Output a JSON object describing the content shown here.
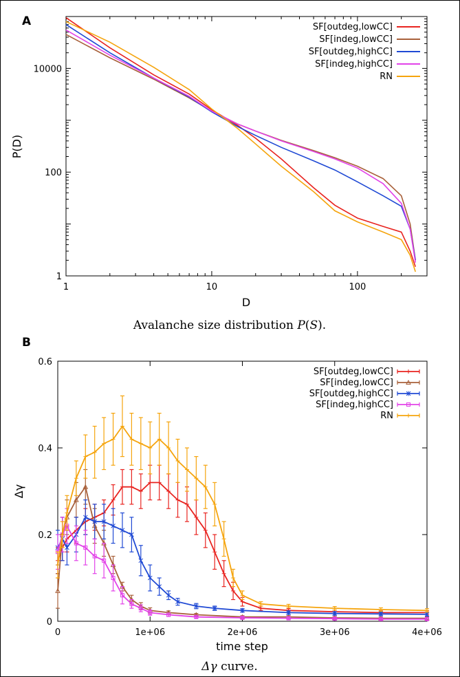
{
  "colors": {
    "SF_outdeg_lowCC": "#e8231f",
    "SF_indeg_lowCC": "#a8603a",
    "SF_outdeg_highCC": "#1f49d4",
    "SF_indeg_highCC": "#e242e8",
    "RN": "#f5a40c"
  },
  "chart_data": [
    {
      "panel_label": "A",
      "type": "line",
      "xscale": "log",
      "yscale": "log",
      "xlim": [
        1,
        300
      ],
      "ylim": [
        1,
        100000
      ],
      "xticks": [
        1,
        10,
        100
      ],
      "xtick_labels": [
        "1",
        "10",
        "100"
      ],
      "yticks": [
        1,
        100,
        10000
      ],
      "ytick_labels": [
        "1",
        "100",
        "10000"
      ],
      "xlabel": "D",
      "ylabel": "P(D)",
      "caption_prefix": "Avalanche size distribution ",
      "caption_var": "P",
      "caption_arg": "S",
      "caption_suffix": ".",
      "legend_position": "top-right",
      "series": [
        {
          "name": "SF[outdeg,lowCC]",
          "color_key": "SF_outdeg_lowCC",
          "x": [
            1,
            2,
            4,
            7,
            10,
            15,
            20,
            30,
            50,
            70,
            100,
            150,
            200,
            230,
            250
          ],
          "y": [
            95000,
            25000,
            7500,
            3200,
            1600,
            800,
            450,
            180,
            50,
            23,
            13,
            9,
            7,
            3,
            1.5
          ]
        },
        {
          "name": "SF[indeg,lowCC]",
          "color_key": "SF_indeg_lowCC",
          "x": [
            1,
            2,
            4,
            7,
            10,
            15,
            20,
            30,
            50,
            70,
            100,
            150,
            200,
            230,
            250
          ],
          "y": [
            45000,
            16000,
            6200,
            2700,
            1500,
            850,
            620,
            410,
            260,
            190,
            130,
            75,
            35,
            10,
            2
          ]
        },
        {
          "name": "SF[outdeg,highCC]",
          "color_key": "SF_outdeg_highCC",
          "x": [
            1,
            2,
            4,
            7,
            10,
            15,
            20,
            30,
            50,
            70,
            100,
            150,
            200,
            230,
            250
          ],
          "y": [
            70000,
            20000,
            6500,
            2800,
            1450,
            760,
            510,
            300,
            165,
            110,
            65,
            35,
            22,
            8,
            2
          ]
        },
        {
          "name": "SF[indeg,highCC]",
          "color_key": "SF_indeg_highCC",
          "x": [
            1,
            2,
            4,
            7,
            10,
            15,
            20,
            30,
            50,
            70,
            100,
            150,
            200,
            230,
            250
          ],
          "y": [
            55000,
            18000,
            6500,
            2900,
            1500,
            850,
            620,
            400,
            250,
            180,
            120,
            60,
            25,
            8,
            1.8
          ]
        },
        {
          "name": "RN",
          "color_key": "RN",
          "x": [
            1,
            2,
            4,
            7,
            10,
            15,
            20,
            30,
            50,
            70,
            100,
            150,
            200,
            230,
            250
          ],
          "y": [
            80000,
            32000,
            10500,
            3900,
            1650,
            700,
            350,
            130,
            42,
            18,
            11,
            7,
            5,
            2.5,
            1.2
          ]
        }
      ]
    },
    {
      "panel_label": "B",
      "type": "line",
      "xlim": [
        0,
        4000000
      ],
      "ylim": [
        0,
        0.6
      ],
      "xticks": [
        0,
        1000000,
        2000000,
        3000000,
        4000000
      ],
      "xtick_labels": [
        "0",
        "1e+06",
        "2e+06",
        "3e+06",
        "4e+06"
      ],
      "yticks": [
        0,
        0.2,
        0.4,
        0.6
      ],
      "ytick_labels": [
        "0",
        "0.2",
        "0.4",
        "0.6"
      ],
      "xlabel": "time step",
      "ylabel": "Δγ",
      "caption_var": "Δγ",
      "caption_suffix": " curve.",
      "legend_position": "top-right",
      "series": [
        {
          "name": "SF[outdeg,lowCC]",
          "color_key": "SF_outdeg_lowCC",
          "marker": "plus",
          "x": [
            0,
            50000,
            100000,
            200000,
            300000,
            400000,
            500000,
            600000,
            700000,
            800000,
            900000,
            1000000,
            1100000,
            1200000,
            1300000,
            1400000,
            1500000,
            1600000,
            1700000,
            1800000,
            1900000,
            2000000,
            2200000,
            2500000,
            3000000,
            3500000,
            4000000
          ],
          "y": [
            0.14,
            0.17,
            0.19,
            0.21,
            0.23,
            0.24,
            0.25,
            0.28,
            0.31,
            0.31,
            0.3,
            0.32,
            0.32,
            0.3,
            0.28,
            0.27,
            0.24,
            0.21,
            0.16,
            0.11,
            0.07,
            0.045,
            0.03,
            0.025,
            0.022,
            0.02,
            0.02
          ],
          "err": [
            0.03,
            0.03,
            0.03,
            0.03,
            0.03,
            0.03,
            0.03,
            0.035,
            0.04,
            0.04,
            0.04,
            0.04,
            0.04,
            0.04,
            0.04,
            0.04,
            0.04,
            0.04,
            0.04,
            0.03,
            0.02,
            0.01,
            0.005,
            0.004,
            0.004,
            0.004,
            0.004
          ]
        },
        {
          "name": "SF[indeg,lowCC]",
          "color_key": "SF_indeg_lowCC",
          "marker": "triangle",
          "x": [
            0,
            50000,
            100000,
            200000,
            300000,
            400000,
            500000,
            600000,
            700000,
            800000,
            900000,
            1000000,
            1200000,
            1500000,
            2000000,
            2500000,
            3000000,
            3500000,
            4000000
          ],
          "y": [
            0.07,
            0.2,
            0.24,
            0.28,
            0.31,
            0.22,
            0.18,
            0.13,
            0.08,
            0.05,
            0.035,
            0.025,
            0.02,
            0.015,
            0.01,
            0.01,
            0.008,
            0.007,
            0.007
          ],
          "err": [
            0.04,
            0.04,
            0.04,
            0.04,
            0.04,
            0.04,
            0.03,
            0.02,
            0.01,
            0.01,
            0.008,
            0.006,
            0.004,
            0.003,
            0.003,
            0.003,
            0.003,
            0.003,
            0.003
          ]
        },
        {
          "name": "SF[outdeg,highCC]",
          "color_key": "SF_outdeg_highCC",
          "marker": "star",
          "x": [
            0,
            50000,
            100000,
            200000,
            300000,
            400000,
            500000,
            600000,
            700000,
            800000,
            900000,
            1000000,
            1100000,
            1200000,
            1300000,
            1500000,
            1700000,
            2000000,
            2500000,
            3000000,
            3500000,
            4000000
          ],
          "y": [
            0.17,
            0.19,
            0.17,
            0.2,
            0.24,
            0.23,
            0.23,
            0.22,
            0.21,
            0.2,
            0.14,
            0.1,
            0.08,
            0.06,
            0.045,
            0.035,
            0.03,
            0.025,
            0.02,
            0.018,
            0.017,
            0.016
          ],
          "err": [
            0.04,
            0.05,
            0.04,
            0.04,
            0.04,
            0.04,
            0.04,
            0.04,
            0.04,
            0.04,
            0.035,
            0.03,
            0.02,
            0.01,
            0.008,
            0.006,
            0.005,
            0.004,
            0.004,
            0.004,
            0.004,
            0.004
          ]
        },
        {
          "name": "SF[indeg,highCC]",
          "color_key": "SF_indeg_highCC",
          "marker": "square",
          "x": [
            0,
            50000,
            100000,
            200000,
            300000,
            400000,
            500000,
            600000,
            700000,
            800000,
            900000,
            1000000,
            1200000,
            1500000,
            2000000,
            2500000,
            3000000,
            3500000,
            4000000
          ],
          "y": [
            0.16,
            0.2,
            0.22,
            0.18,
            0.17,
            0.15,
            0.14,
            0.1,
            0.06,
            0.04,
            0.03,
            0.02,
            0.015,
            0.01,
            0.008,
            0.007,
            0.006,
            0.005,
            0.005
          ],
          "err": [
            0.04,
            0.04,
            0.04,
            0.04,
            0.04,
            0.04,
            0.04,
            0.03,
            0.02,
            0.01,
            0.008,
            0.006,
            0.004,
            0.003,
            0.003,
            0.003,
            0.003,
            0.003,
            0.003
          ]
        },
        {
          "name": "RN",
          "color_key": "RN",
          "marker": "plus",
          "x": [
            0,
            50000,
            100000,
            200000,
            300000,
            400000,
            500000,
            600000,
            700000,
            800000,
            900000,
            1000000,
            1100000,
            1200000,
            1300000,
            1400000,
            1500000,
            1600000,
            1700000,
            1800000,
            1900000,
            2000000,
            2200000,
            2500000,
            3000000,
            3500000,
            4000000
          ],
          "y": [
            0.13,
            0.2,
            0.25,
            0.33,
            0.38,
            0.39,
            0.41,
            0.42,
            0.45,
            0.42,
            0.41,
            0.4,
            0.42,
            0.4,
            0.37,
            0.35,
            0.33,
            0.31,
            0.27,
            0.19,
            0.1,
            0.06,
            0.04,
            0.035,
            0.03,
            0.027,
            0.025
          ],
          "err": [
            0.03,
            0.03,
            0.04,
            0.04,
            0.05,
            0.06,
            0.06,
            0.06,
            0.07,
            0.06,
            0.06,
            0.06,
            0.06,
            0.06,
            0.05,
            0.05,
            0.05,
            0.05,
            0.05,
            0.04,
            0.02,
            0.01,
            0.005,
            0.004,
            0.004,
            0.004,
            0.004
          ]
        }
      ]
    }
  ]
}
